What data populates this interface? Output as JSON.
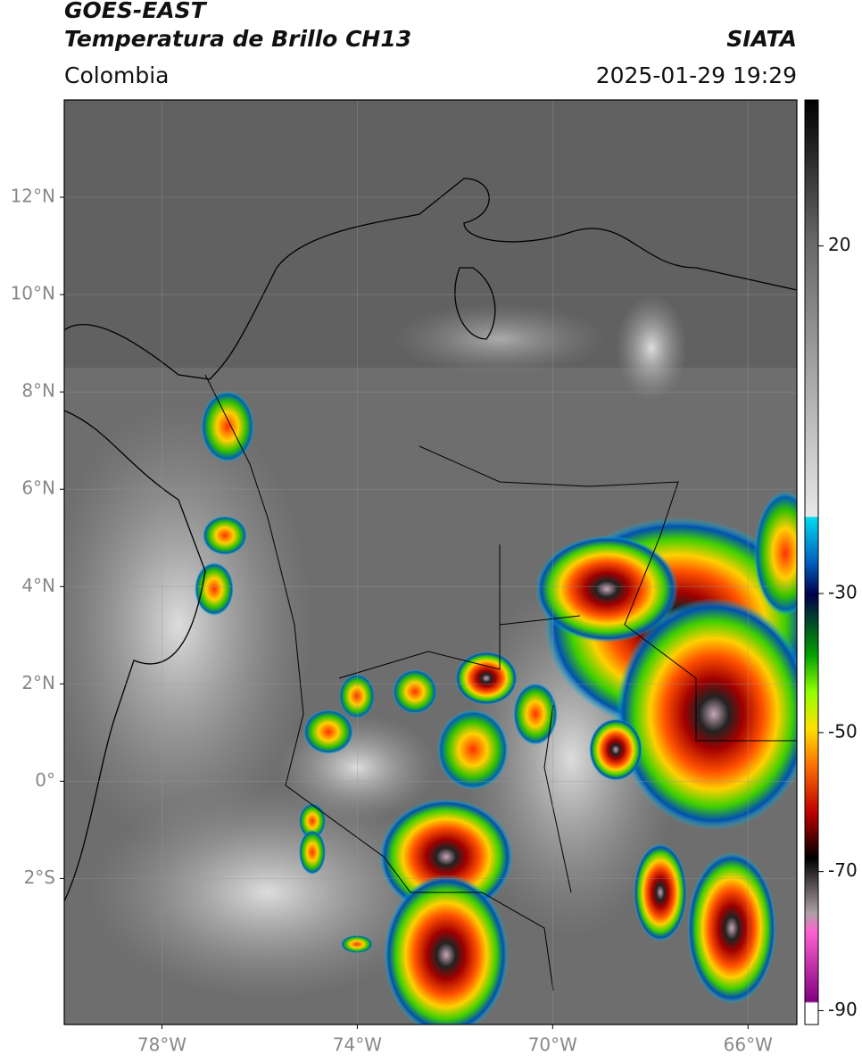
{
  "header": {
    "title": "GOES-EAST",
    "subtitle": "Temperatura de Brillo CH13",
    "region": "Colombia",
    "source": "SIATA",
    "datetime": "2025-01-29 19:29"
  },
  "map": {
    "xlim": [
      -80,
      -65
    ],
    "ylim": [
      -5,
      14
    ],
    "grid": true,
    "xticks": [
      {
        "value": -78,
        "label": "78°W"
      },
      {
        "value": -74,
        "label": "74°W"
      },
      {
        "value": -70,
        "label": "70°W"
      },
      {
        "value": -66,
        "label": "66°W"
      }
    ],
    "yticks": [
      {
        "value": 12,
        "label": "12°N"
      },
      {
        "value": 10,
        "label": "10°N"
      },
      {
        "value": 8,
        "label": "8°N"
      },
      {
        "value": 6,
        "label": "6°N"
      },
      {
        "value": 4,
        "label": "4°N"
      },
      {
        "value": 2,
        "label": "2°N"
      },
      {
        "value": 0,
        "label": "0°"
      },
      {
        "value": -2,
        "label": "2°S"
      }
    ]
  },
  "colorbar": {
    "lim": [
      -92,
      41
    ],
    "ticks": [
      20,
      -30,
      -50,
      -70,
      -90
    ]
  }
}
